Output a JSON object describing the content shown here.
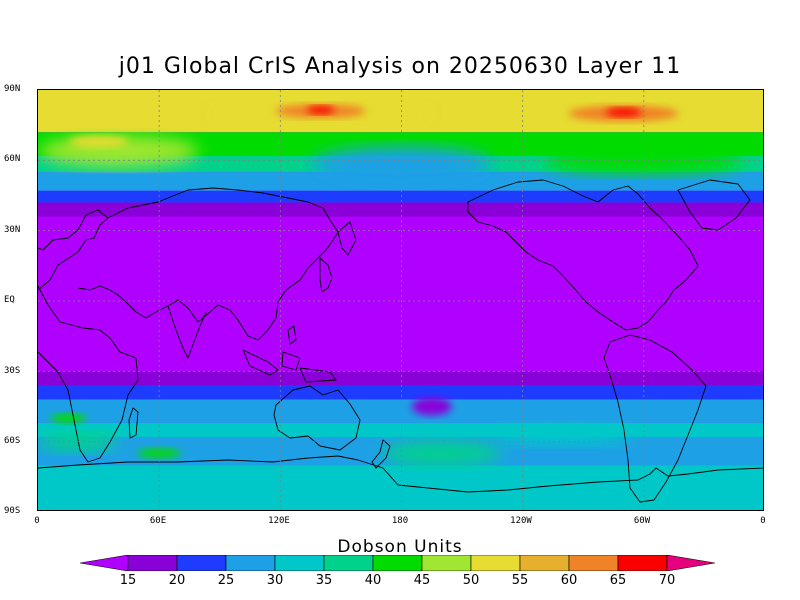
{
  "title": "j01 Global CrIS Analysis on 20250630 Layer 11",
  "map": {
    "lat_labels": [
      "90N",
      "60N",
      "30N",
      "EQ",
      "30S",
      "60S",
      "90S"
    ],
    "lon_labels": [
      "0",
      "60E",
      "120E",
      "180",
      "120W",
      "60W",
      "0"
    ]
  },
  "colorbar": {
    "title": "Dobson Units",
    "labels": [
      "15",
      "20",
      "25",
      "30",
      "35",
      "40",
      "45",
      "50",
      "55",
      "60",
      "65",
      "70"
    ],
    "colors": [
      "#b000ff",
      "#8a00d8",
      "#1e3cff",
      "#1ea0e6",
      "#00c8c8",
      "#00d28c",
      "#00dc00",
      "#a0e632",
      "#e6dc32",
      "#e6af2d",
      "#f08228",
      "#fa0000",
      "#e6007d"
    ]
  },
  "chart_data": {
    "type": "heatmap",
    "title": "j01 Global CrIS Analysis on 20250630 Layer 11",
    "xlabel": "",
    "ylabel": "",
    "units": "Dobson Units",
    "x_range": [
      0,
      360
    ],
    "y_range": [
      -90,
      90
    ],
    "color_levels": [
      15,
      20,
      25,
      30,
      35,
      40,
      45,
      50,
      55,
      60,
      65,
      70
    ],
    "grid": true,
    "legend_placement": "bottom",
    "zonal_pattern": [
      {
        "lat": [
          35,
          -30
        ],
        "value_range": [
          0,
          15
        ]
      },
      {
        "lat": [
          45,
          35
        ],
        "value_range": [
          15,
          25
        ]
      },
      {
        "lat": [
          60,
          45
        ],
        "value_range": [
          25,
          40
        ]
      },
      {
        "lat": [
          90,
          60
        ],
        "value_range": [
          40,
          70
        ]
      },
      {
        "lat": [
          -30,
          -40
        ],
        "value_range": [
          15,
          25
        ]
      },
      {
        "lat": [
          -40,
          -90
        ],
        "value_range": [
          25,
          45
        ]
      }
    ],
    "maxima": [
      {
        "lon": 140,
        "lat": 81,
        "value_range": [
          65,
          70
        ]
      },
      {
        "lon": 290,
        "lat": 80,
        "value_range": [
          65,
          70
        ]
      }
    ]
  }
}
